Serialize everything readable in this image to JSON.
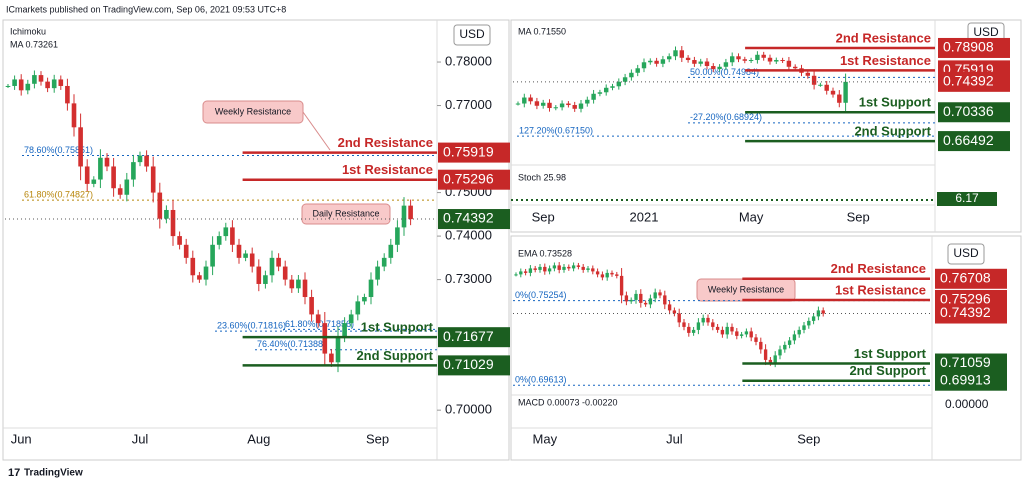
{
  "header": {
    "text": "ICmarkets published on TradingView.com, Sep 06, 2021 09:53 UTC+8"
  },
  "footer": {
    "logo": "17",
    "text": "TradingView"
  },
  "chart_data": [
    {
      "type": "candlestick",
      "currency": "USD",
      "up_color": "#26a65b",
      "down_color": "#d32f2f",
      "indicators": [
        "Ichimoku",
        "MA  0.73261"
      ],
      "values": [
        0.7745,
        0.776,
        0.7735,
        0.775,
        0.777,
        0.7755,
        0.774,
        0.776,
        0.7745,
        0.7705,
        0.765,
        0.756,
        0.752,
        0.753,
        0.758,
        0.756,
        0.751,
        0.7495,
        0.753,
        0.757,
        0.7585,
        0.756,
        0.75,
        0.744,
        0.746,
        0.74,
        0.738,
        0.735,
        0.731,
        0.73,
        0.733,
        0.738,
        0.74,
        0.742,
        0.738,
        0.735,
        0.736,
        0.733,
        0.729,
        0.731,
        0.735,
        0.733,
        0.73,
        0.728,
        0.73,
        0.726,
        0.722,
        0.72,
        0.713,
        0.711,
        0.717,
        0.72,
        0.722,
        0.725,
        0.726,
        0.73,
        0.733,
        0.735,
        0.738,
        0.742,
        0.747,
        0.7439
      ],
      "x_labels": [
        {
          "value": 2,
          "label": "Jun"
        },
        {
          "value": 20,
          "label": "Jul"
        },
        {
          "value": 38,
          "label": "Aug"
        },
        {
          "value": 56,
          "label": "Sep"
        }
      ],
      "ylim": [
        0.6959,
        0.7892
      ],
      "yticks": [
        {
          "value": 0.7,
          "label": "0.70000"
        },
        {
          "value": 0.73,
          "label": "0.73000"
        },
        {
          "value": 0.74,
          "label": "0.74000"
        },
        {
          "value": 0.75,
          "label": "0.75000"
        },
        {
          "value": 0.77,
          "label": "0.77000"
        },
        {
          "value": 0.78,
          "label": "0.78000"
        }
      ],
      "levels": [
        {
          "label": "2nd Resistance",
          "value": 0.75919,
          "value_label": "0.75919",
          "color": "#c62828",
          "line": "solid"
        },
        {
          "label": "1st Resistance",
          "value": 0.75296,
          "value_label": "0.75296",
          "color": "#c62828",
          "line": "solid"
        },
        {
          "value": 0.74392,
          "value_label": "0.74392",
          "color": "#1b5e20",
          "line": "dotted"
        },
        {
          "label": "1st Support",
          "value": 0.71677,
          "value_label": "0.71677",
          "color": "#1b5e20",
          "line": "solid"
        },
        {
          "label": "2nd Support",
          "value": 0.71029,
          "value_label": "0.71029",
          "color": "#1b5e20",
          "line": "solid"
        }
      ],
      "fibs": [
        {
          "label": "78.60%(0.75851)",
          "value": 0.75851,
          "color": "#1565c0"
        },
        {
          "label": "61.80%(0.74827)",
          "value": 0.74827,
          "color": "#b8860b"
        },
        {
          "label": "23.60%(0.71816)",
          "value": 0.71816,
          "color": "#1565c0"
        },
        {
          "label": "61.80%(0.71856)",
          "value": 0.71856,
          "color": "#1565c0"
        },
        {
          "label": "76.40%(0.71388)",
          "value": 0.71388,
          "color": "#1565c0"
        }
      ],
      "annotations": [
        "Weekly Resistance",
        "Daily Resistance"
      ]
    },
    {
      "type": "candlestick",
      "currency": "USD",
      "up_color": "#26a65b",
      "down_color": "#d32f2f",
      "indicators": [
        "MA  0.71550",
        "Stoch  25.98"
      ],
      "values": [
        0.715,
        0.723,
        0.718,
        0.712,
        0.716,
        0.709,
        0.71,
        0.715,
        0.713,
        0.708,
        0.715,
        0.72,
        0.728,
        0.73,
        0.736,
        0.738,
        0.744,
        0.75,
        0.756,
        0.762,
        0.77,
        0.772,
        0.768,
        0.774,
        0.778,
        0.786,
        0.776,
        0.773,
        0.768,
        0.771,
        0.765,
        0.761,
        0.764,
        0.77,
        0.778,
        0.774,
        0.772,
        0.773,
        0.78,
        0.776,
        0.771,
        0.773,
        0.772,
        0.764,
        0.762,
        0.756,
        0.752,
        0.74,
        0.74,
        0.732,
        0.727,
        0.716,
        0.7439
      ],
      "x_labels": [
        {
          "value": 4,
          "label": "Sep"
        },
        {
          "value": 20,
          "label": "2021"
        },
        {
          "value": 37,
          "label": "May"
        },
        {
          "value": 54,
          "label": "Sep"
        }
      ],
      "ylim": [
        0.6397,
        0.8237
      ],
      "levels": [
        {
          "label": "2nd Resistance",
          "value": 0.78908,
          "value_label": "0.78908",
          "color": "#c62828",
          "line": "solid"
        },
        {
          "label": "1st Resistance",
          "value": 0.75919,
          "value_label": "0.75919",
          "color": "#c62828",
          "line": "solid"
        },
        {
          "value": 0.74392,
          "value_label": "0.74392",
          "color": "#c62828",
          "line": "dotted"
        },
        {
          "label": "1st Support",
          "value": 0.70336,
          "value_label": "0.70336",
          "color": "#1b5e20",
          "line": "solid"
        },
        {
          "label": "2nd Support",
          "value": 0.66492,
          "value_label": "0.66492",
          "color": "#1b5e20",
          "line": "solid"
        }
      ],
      "fibs": [
        {
          "label": "50.00%(0.74984)",
          "value": 0.74984,
          "color": "#1565c0"
        },
        {
          "label": "-27.20%(0.68924)",
          "value": 0.68924,
          "color": "#1565c0"
        },
        {
          "label": "127.20%(0.67150)",
          "value": 0.6715,
          "color": "#1565c0"
        }
      ],
      "stoch_value": "6.17"
    },
    {
      "type": "candlestick",
      "currency": "USD",
      "up_color": "#26a65b",
      "down_color": "#d32f2f",
      "indicators": [
        "EMA  0.73528",
        "MACD  0.00073  -0.00220"
      ],
      "values": [
        0.77,
        0.772,
        0.771,
        0.774,
        0.773,
        0.775,
        0.772,
        0.774,
        0.776,
        0.773,
        0.775,
        0.774,
        0.776,
        0.775,
        0.773,
        0.774,
        0.772,
        0.77,
        0.768,
        0.771,
        0.77,
        0.769,
        0.756,
        0.752,
        0.753,
        0.757,
        0.751,
        0.75,
        0.754,
        0.758,
        0.756,
        0.75,
        0.746,
        0.744,
        0.738,
        0.735,
        0.731,
        0.733,
        0.738,
        0.741,
        0.738,
        0.735,
        0.733,
        0.73,
        0.735,
        0.732,
        0.729,
        0.73,
        0.732,
        0.728,
        0.725,
        0.72,
        0.713,
        0.711,
        0.716,
        0.72,
        0.723,
        0.726,
        0.73,
        0.733,
        0.736,
        0.739,
        0.742,
        0.746,
        0.7439
      ],
      "x_labels": [
        {
          "value": 6,
          "label": "May"
        },
        {
          "value": 33,
          "label": "Jul"
        },
        {
          "value": 61,
          "label": "Sep"
        }
      ],
      "ylim": [
        0.6896,
        0.7896
      ],
      "levels": [
        {
          "label": "2nd Resistance",
          "value": 0.76708,
          "value_label": "0.76708",
          "color": "#c62828",
          "line": "solid"
        },
        {
          "label": "1st Resistance",
          "value": 0.75296,
          "value_label": "0.75296",
          "color": "#c62828",
          "line": "solid"
        },
        {
          "value": 0.74392,
          "value_label": "0.74392",
          "color": "#c62828",
          "line": "dotted"
        },
        {
          "label": "1st Support",
          "value": 0.71059,
          "value_label": "0.71059",
          "color": "#1b5e20",
          "line": "solid"
        },
        {
          "label": "2nd Support",
          "value": 0.69913,
          "value_label": "0.69913",
          "color": "#1b5e20",
          "line": "solid"
        }
      ],
      "fibs": [
        {
          "label": "0%(0.75254)",
          "value": 0.75254,
          "color": "#1565c0"
        },
        {
          "label": "0%(0.69613)",
          "value": 0.69613,
          "color": "#1565c0"
        }
      ],
      "annotations": [
        "Weekly Resistance"
      ],
      "macd_tick": "0.00000"
    }
  ]
}
